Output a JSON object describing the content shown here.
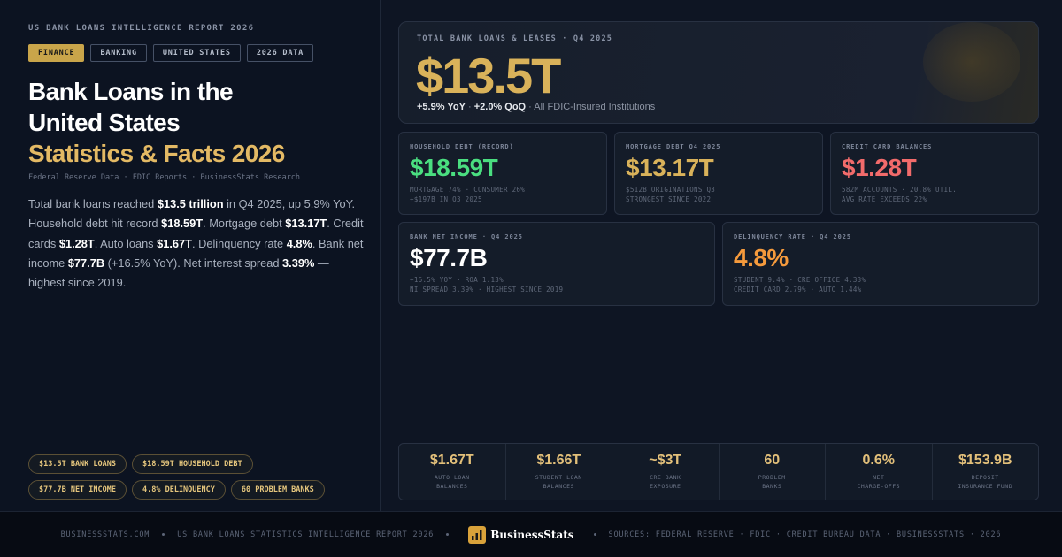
{
  "header": {
    "eyebrow": "US BANK LOANS INTELLIGENCE REPORT 2026",
    "tags": [
      "FINANCE",
      "BANKING",
      "UNITED STATES",
      "2026 DATA"
    ],
    "title_lines": [
      "Bank Loans in the",
      "United States"
    ],
    "title_accent": "Statistics & Facts 2026",
    "sources": "Federal Reserve Data · FDIC Reports · BusinessStats Research"
  },
  "summary": [
    {
      "text": "Total bank loans reached "
    },
    {
      "strong": "$13.5 trillion"
    },
    {
      "text": " in Q4 2025, up 5.9% YoY. Household debt hit record "
    },
    {
      "strong": "$18.59T"
    },
    {
      "text": ". Mortgage debt "
    },
    {
      "strong": "$13.17T"
    },
    {
      "text": ". Credit cards "
    },
    {
      "strong": "$1.28T"
    },
    {
      "text": ". Auto loans "
    },
    {
      "strong": "$1.67T"
    },
    {
      "text": ". Delinquency rate "
    },
    {
      "strong": "4.8%"
    },
    {
      "text": ". Bank net income "
    },
    {
      "strong": "$77.7B"
    },
    {
      "text": " (+16.5% YoY). Net interest spread "
    },
    {
      "strong": "3.39%"
    },
    {
      "text": " — highest since 2019."
    }
  ],
  "chips": [
    [
      "$13.5T BANK LOANS",
      "$18.59T HOUSEHOLD DEBT"
    ],
    [
      "$77.7B NET INCOME",
      "4.8% DELINQUENCY",
      "60 PROBLEM BANKS"
    ]
  ],
  "hero": {
    "label": "TOTAL BANK LOANS & LEASES · Q4 2025",
    "value": "$13.5T",
    "sub": [
      {
        "strong": "+5.9% YoY"
      },
      {
        "text": " · "
      },
      {
        "strong": "+2.0% QoQ"
      },
      {
        "text": " · All FDIC-Insured Institutions"
      }
    ]
  },
  "cards": [
    [
      {
        "label": "HOUSEHOLD DEBT (RECORD)",
        "value": "$18.59T",
        "color": "#4ade80",
        "notes": [
          "MORTGAGE 74% · CONSUMER 26%",
          "+$197B IN Q3 2025"
        ]
      },
      {
        "label": "MORTGAGE DEBT Q4 2025",
        "value": "$13.17T",
        "color": "#d9b25a",
        "notes": [
          "$512B ORIGINATIONS Q3",
          "STRONGEST SINCE 2022"
        ]
      },
      {
        "label": "CREDIT CARD BALANCES",
        "value": "$1.28T",
        "color": "#f26b6b",
        "notes": [
          "582M ACCOUNTS · 20.8% UTIL.",
          "AVG RATE EXCEEDS 22%"
        ]
      }
    ],
    [
      {
        "label": "BANK NET INCOME · Q4 2025",
        "value": "$77.7B",
        "color": "#ffffff",
        "notes": [
          "+16.5% YOY · ROA 1.13%",
          "NI SPREAD 3.39% · HIGHEST SINCE 2019"
        ]
      },
      {
        "label": "DELINQUENCY RATE · Q4 2025",
        "value": "4.8%",
        "color": "#f59a3c",
        "notes": [
          "STUDENT 9.4% · CRE OFFICE 4.33%",
          "CREDIT CARD 2.79% · AUTO 1.44%"
        ]
      }
    ]
  ],
  "stats": [
    {
      "value": "$1.67T",
      "label": [
        "AUTO LOAN",
        "BALANCES"
      ]
    },
    {
      "value": "$1.66T",
      "label": [
        "STUDENT LOAN",
        "BALANCES"
      ]
    },
    {
      "value": "~$3T",
      "label": [
        "CRE BANK",
        "EXPOSURE"
      ]
    },
    {
      "value": "60",
      "label": [
        "PROBLEM",
        "BANKS"
      ]
    },
    {
      "value": "0.6%",
      "label": [
        "NET",
        "CHARGE-OFFS"
      ]
    },
    {
      "value": "$153.9B",
      "label": [
        "DEPOSIT",
        "INSURANCE FUND"
      ]
    }
  ],
  "footer": {
    "site": "BUSINESSSTATS.COM",
    "report": "US BANK LOANS STATISTICS INTELLIGENCE REPORT 2026",
    "brand": "BusinessStats",
    "sources": "SOURCES: FEDERAL RESERVE · FDIC · CREDIT BUREAU DATA · BUSINESSSTATS · 2026"
  }
}
